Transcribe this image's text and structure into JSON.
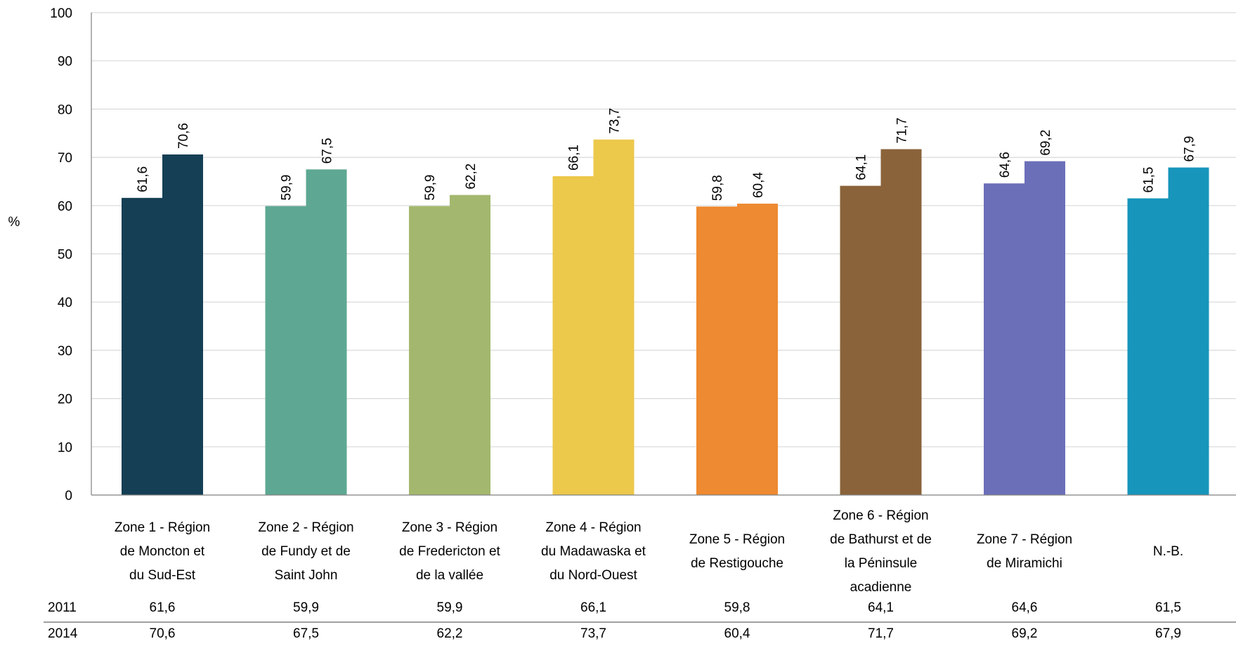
{
  "chart_data": {
    "type": "bar",
    "title": "",
    "xlabel": "",
    "ylabel": "%",
    "ylim": [
      0,
      100
    ],
    "yticks": [
      "0",
      "10",
      "20",
      "30",
      "40",
      "50",
      "60",
      "70",
      "80",
      "90",
      "100"
    ],
    "grid": true,
    "categories": [
      [
        "Zone 1 - Région",
        "de Moncton et",
        "du Sud-Est"
      ],
      [
        "Zone 2 - Région",
        "de Fundy et de",
        "Saint John"
      ],
      [
        "Zone 3 - Région",
        "de Fredericton et",
        "de la vallée"
      ],
      [
        "Zone 4 - Région",
        "du Madawaska et",
        "du Nord-Ouest"
      ],
      [
        "Zone 5 - Région",
        "de Restigouche"
      ],
      [
        "Zone 6 - Région",
        "de Bathurst et de",
        "la Péninsule",
        "acadienne"
      ],
      [
        "Zone 7 - Région",
        "de Miramichi"
      ],
      [
        "N.-B."
      ]
    ],
    "colors": [
      "#143F54",
      "#5EA893",
      "#A3B86E",
      "#ECC84B",
      "#EE8A31",
      "#8A633A",
      "#6B6FB8",
      "#1795BB"
    ],
    "series": [
      {
        "name": "2011",
        "values": [
          61.6,
          59.9,
          59.9,
          66.1,
          59.8,
          64.1,
          64.6,
          61.5
        ],
        "labels": [
          "61,6",
          "59,9",
          "59,9",
          "66,1",
          "59,8",
          "64,1",
          "64,6",
          "61,5"
        ]
      },
      {
        "name": "2014",
        "values": [
          70.6,
          67.5,
          62.2,
          73.7,
          60.4,
          71.7,
          69.2,
          67.9
        ],
        "labels": [
          "70,6",
          "67,5",
          "62,2",
          "73,7",
          "60,4",
          "71,7",
          "69,2",
          "67,9"
        ]
      }
    ]
  }
}
